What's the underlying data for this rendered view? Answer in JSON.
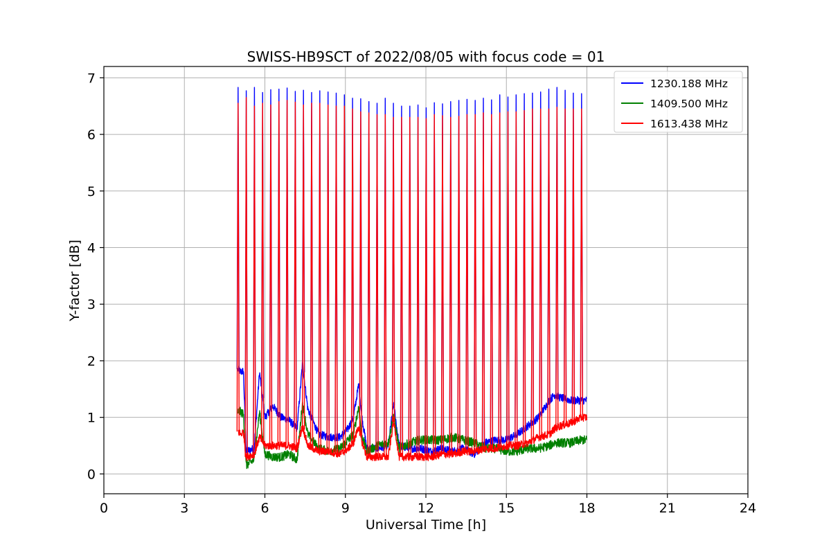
{
  "chart_data": {
    "type": "line",
    "title": "SWISS-HB9SCT of 2022/08/05 with focus code = 01",
    "xlabel": "Universal Time [h]",
    "ylabel": "Y-factor [dB]",
    "xlim": [
      0,
      24
    ],
    "ylim": [
      -0.35,
      7.2
    ],
    "xticks": [
      0,
      3,
      6,
      9,
      12,
      15,
      18,
      21,
      24
    ],
    "yticks": [
      0,
      1,
      2,
      3,
      4,
      5,
      6,
      7
    ],
    "grid": true,
    "legend_position": "top-right",
    "series": [
      {
        "name": "1230.188 MHz",
        "color": "#0000ff",
        "x": [
          5.0,
          5.1,
          5.2,
          5.3,
          5.6,
          5.8,
          6.0,
          6.3,
          6.6,
          6.9,
          7.2,
          7.4,
          7.6,
          8.0,
          8.4,
          8.8,
          9.1,
          9.3,
          9.5,
          9.6,
          9.8,
          10.2,
          10.6,
          10.8,
          11.0,
          11.4,
          11.8,
          12.2,
          12.6,
          13.0,
          13.4,
          13.8,
          14.2,
          14.6,
          15.0,
          15.4,
          15.8,
          16.2,
          16.6,
          16.8,
          17.0,
          17.4,
          17.8,
          18.0
        ],
        "y": [
          1.85,
          1.8,
          1.82,
          0.4,
          0.45,
          1.8,
          1.0,
          1.2,
          1.0,
          0.95,
          0.8,
          1.95,
          1.15,
          0.7,
          0.65,
          0.65,
          0.8,
          1.0,
          1.6,
          1.05,
          0.45,
          0.45,
          0.5,
          1.25,
          0.5,
          0.45,
          0.45,
          0.4,
          0.45,
          0.4,
          0.45,
          0.35,
          0.55,
          0.6,
          0.6,
          0.7,
          0.85,
          1.0,
          1.3,
          1.4,
          1.35,
          1.3,
          1.3,
          1.3
        ],
        "peaks": [
          6.83,
          6.77,
          6.83,
          6.74,
          6.79,
          6.8,
          6.82,
          6.76,
          6.78,
          6.74,
          6.77,
          6.75,
          6.73,
          6.7,
          6.64,
          6.63,
          6.58,
          6.55,
          6.64,
          6.55,
          6.5,
          6.5,
          6.52,
          6.47,
          6.56,
          6.54,
          6.58,
          6.6,
          6.62,
          6.6,
          6.64,
          6.61,
          6.7,
          6.66,
          6.7,
          6.72,
          6.73,
          6.75,
          6.8,
          6.83,
          6.78,
          6.73,
          6.72
        ]
      },
      {
        "name": "1409.500 MHz",
        "color": "#008000",
        "x": [
          5.0,
          5.1,
          5.2,
          5.3,
          5.6,
          5.8,
          6.0,
          6.3,
          6.6,
          6.9,
          7.2,
          7.4,
          7.6,
          8.0,
          8.4,
          8.8,
          9.1,
          9.3,
          9.5,
          9.6,
          9.8,
          10.2,
          10.6,
          10.8,
          11.0,
          11.4,
          11.8,
          12.2,
          12.6,
          13.0,
          13.4,
          13.8,
          14.2,
          14.6,
          15.0,
          15.4,
          15.8,
          16.2,
          16.6,
          16.8,
          17.0,
          17.4,
          17.8,
          18.0
        ],
        "y": [
          1.1,
          1.1,
          1.05,
          0.15,
          0.25,
          1.1,
          0.35,
          0.3,
          0.3,
          0.35,
          0.25,
          1.25,
          0.7,
          0.45,
          0.4,
          0.45,
          0.6,
          0.7,
          1.2,
          0.7,
          0.4,
          0.5,
          0.55,
          1.05,
          0.45,
          0.55,
          0.6,
          0.6,
          0.6,
          0.65,
          0.6,
          0.55,
          0.45,
          0.45,
          0.4,
          0.4,
          0.45,
          0.45,
          0.5,
          0.55,
          0.55,
          0.55,
          0.6,
          0.6
        ],
        "peaks": []
      },
      {
        "name": "1613.438 MHz",
        "color": "#ff0000",
        "x": [
          5.0,
          5.1,
          5.2,
          5.3,
          5.6,
          5.8,
          6.0,
          6.3,
          6.6,
          6.9,
          7.2,
          7.4,
          7.6,
          8.0,
          8.4,
          8.8,
          9.1,
          9.3,
          9.5,
          9.6,
          9.8,
          10.2,
          10.6,
          10.8,
          11.0,
          11.4,
          11.8,
          12.2,
          12.6,
          13.0,
          13.4,
          13.8,
          14.2,
          14.6,
          15.0,
          15.4,
          15.8,
          16.2,
          16.6,
          16.8,
          17.0,
          17.4,
          17.8,
          18.0
        ],
        "y": [
          0.75,
          0.7,
          0.75,
          0.3,
          0.35,
          0.65,
          0.5,
          0.5,
          0.5,
          0.5,
          0.45,
          0.85,
          0.5,
          0.4,
          0.4,
          0.35,
          0.45,
          0.55,
          0.85,
          0.6,
          0.3,
          0.3,
          0.3,
          0.95,
          0.3,
          0.3,
          0.3,
          0.3,
          0.35,
          0.35,
          0.4,
          0.4,
          0.45,
          0.45,
          0.5,
          0.5,
          0.55,
          0.65,
          0.7,
          0.8,
          0.85,
          0.9,
          1.0,
          1.0
        ],
        "peaks": [
          6.55,
          6.65,
          6.5,
          6.55,
          6.52,
          6.58,
          6.6,
          6.57,
          6.52,
          6.55,
          6.55,
          6.52,
          6.5,
          6.5,
          6.45,
          6.4,
          6.38,
          6.35,
          6.35,
          6.3,
          6.3,
          6.3,
          6.3,
          6.28,
          6.35,
          6.33,
          6.3,
          6.32,
          6.35,
          6.35,
          6.38,
          6.35,
          6.38,
          6.4,
          6.4,
          6.42,
          6.45,
          6.45,
          6.45,
          6.48,
          6.45,
          6.45,
          6.45
        ]
      }
    ]
  }
}
